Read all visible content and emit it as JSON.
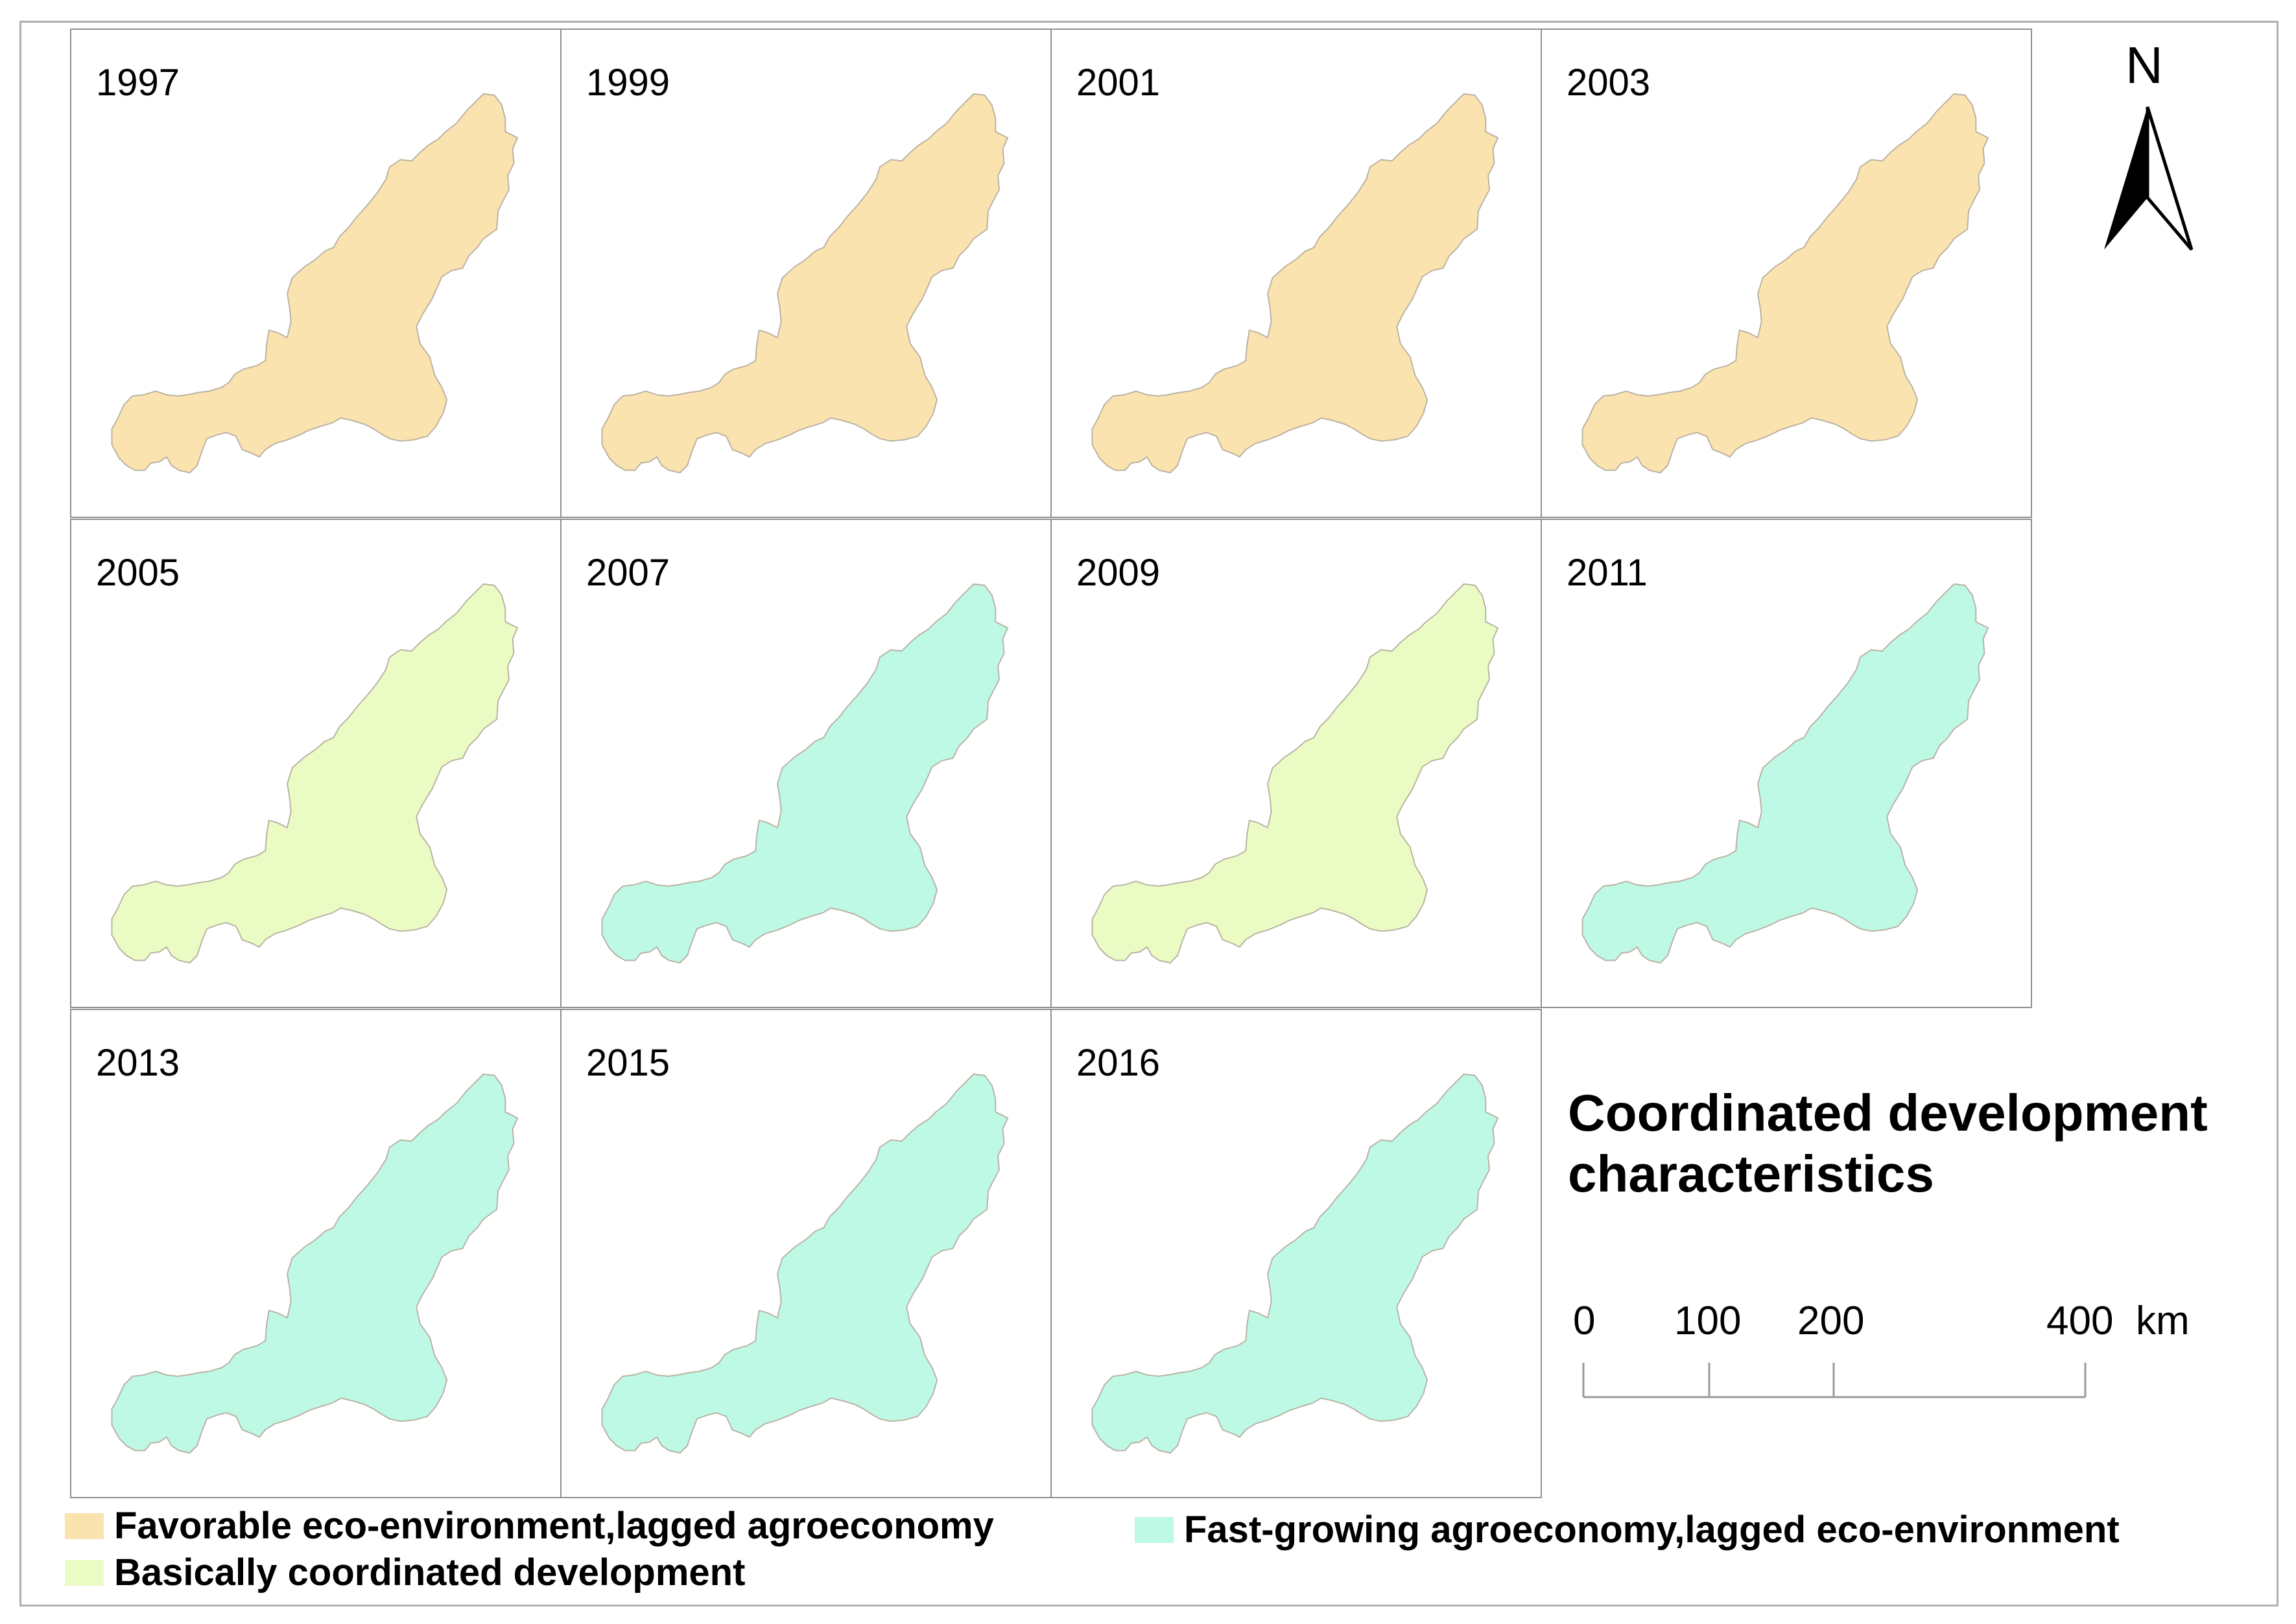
{
  "panels": [
    {
      "year": "1997",
      "category": "favorable"
    },
    {
      "year": "1999",
      "category": "favorable"
    },
    {
      "year": "2001",
      "category": "favorable"
    },
    {
      "year": "2003",
      "category": "favorable"
    },
    {
      "year": "2005",
      "category": "basic"
    },
    {
      "year": "2007",
      "category": "fast"
    },
    {
      "year": "2009",
      "category": "basic"
    },
    {
      "year": "2011",
      "category": "fast"
    },
    {
      "year": "2013",
      "category": "fast"
    },
    {
      "year": "2015",
      "category": "fast"
    },
    {
      "year": "2016",
      "category": "fast"
    }
  ],
  "colors": {
    "favorable": "#fbe3b0",
    "basic": "#eafbc4",
    "fast": "#bdf9e4"
  },
  "north_arrow": {
    "label": "N"
  },
  "legend_title": {
    "line1": "Coordinated development",
    "line2": "characteristics"
  },
  "scale_bar": {
    "ticks": [
      "0",
      "100",
      "200",
      "400"
    ],
    "unit": "km"
  },
  "legend": {
    "favorable": "Favorable eco-environment,lagged agroeconomy",
    "basic": "Basically coordinated development",
    "fast": "Fast-growing agroeconomy,lagged eco-environment"
  }
}
